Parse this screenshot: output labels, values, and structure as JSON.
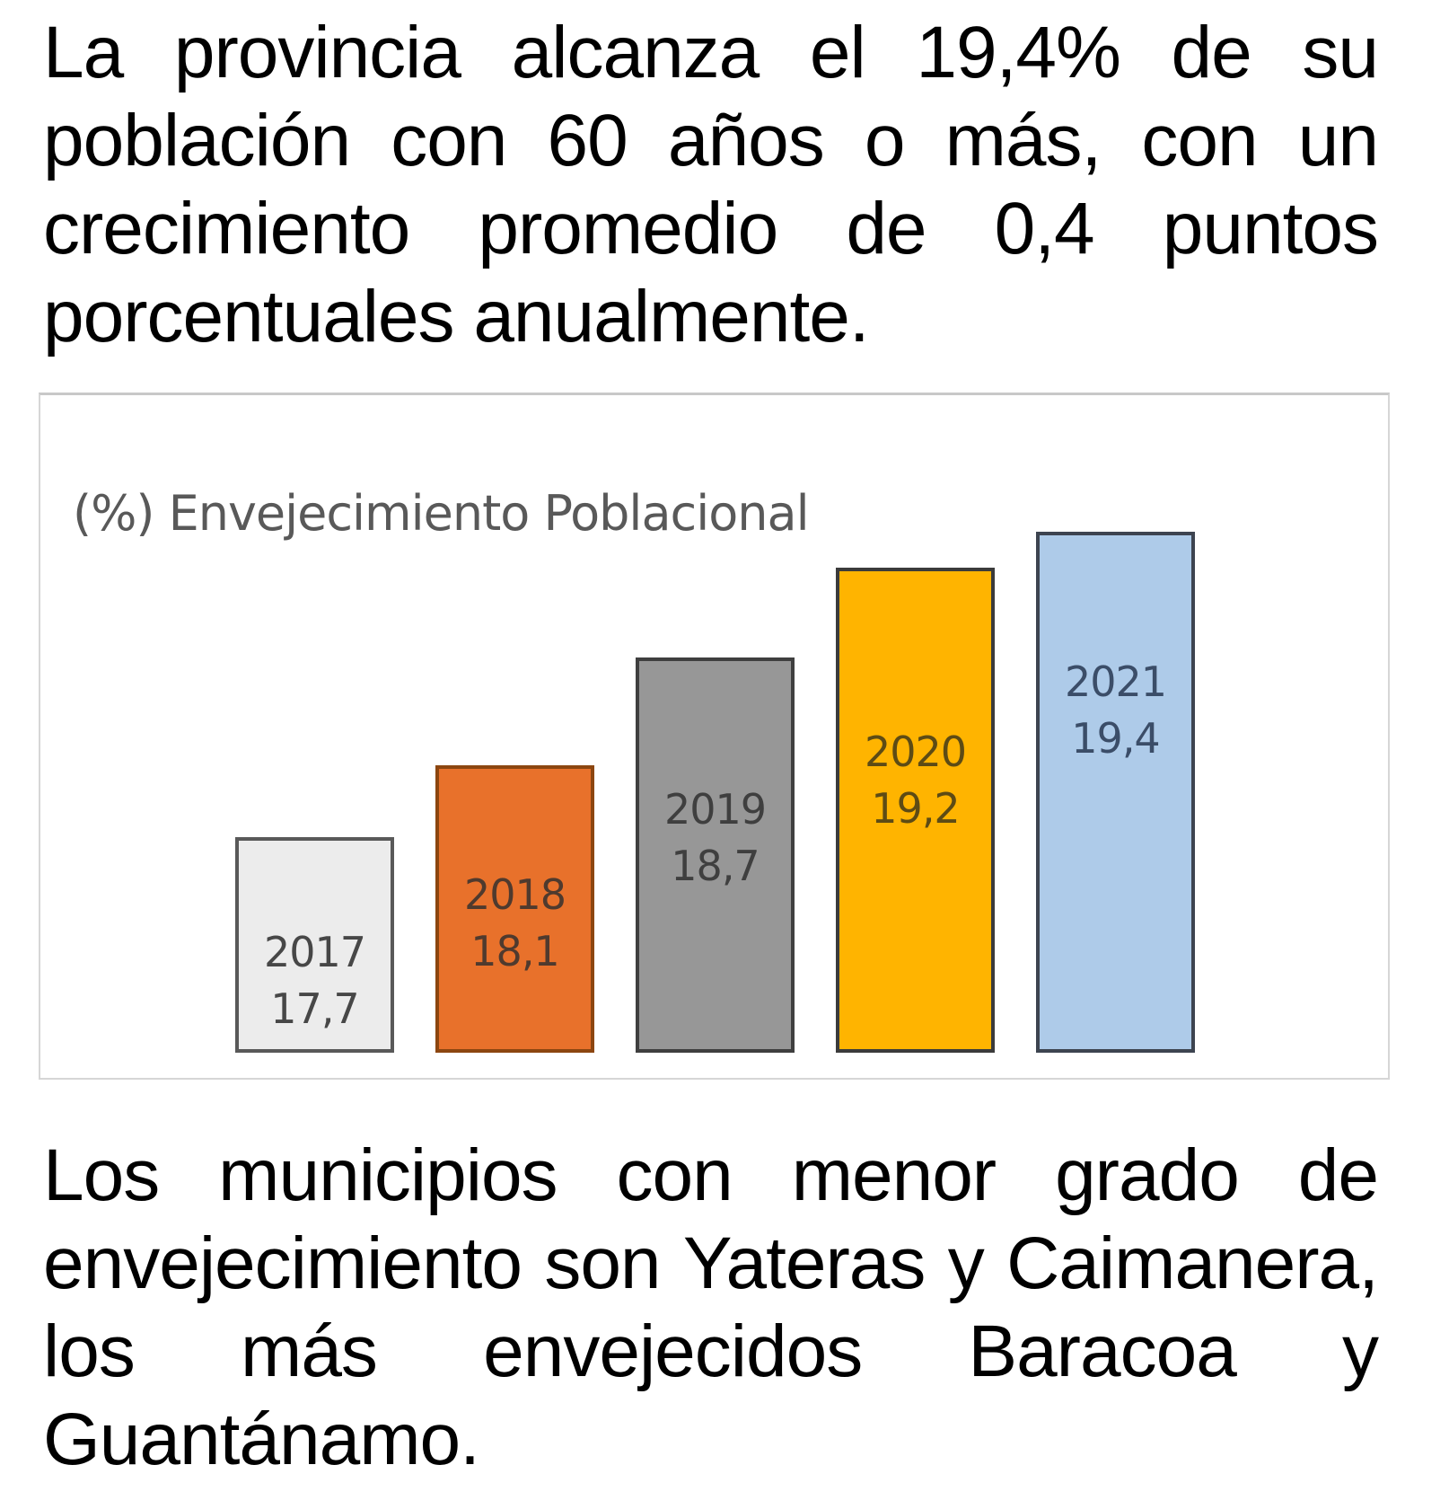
{
  "intro_paragraph": {
    "lines": [
      "La provincia alcanza el 19,4% de su",
      "población con 60 años o más, con un",
      "crecimiento promedio de 0,4 puntos",
      "porcentuales anualmente."
    ]
  },
  "chart": {
    "title": "(%) Envejecimiento Poblacional",
    "title_color": "#595959",
    "background": "#ffffff",
    "border_color": "#d6d6d6"
  },
  "chart_data": {
    "type": "bar",
    "title": "(%) Envejecimiento Poblacional",
    "categories": [
      "2017",
      "2018",
      "2019",
      "2020",
      "2021"
    ],
    "values": [
      17.7,
      18.1,
      18.7,
      19.2,
      19.4
    ],
    "value_labels": [
      "17,7",
      "18,1",
      "18,7",
      "19,2",
      "19,4"
    ],
    "xlabel": "",
    "ylabel": "",
    "ylim": [
      16.5,
      20
    ],
    "grid": false,
    "legend": "none",
    "axes_visible": false,
    "label_position": "inside",
    "bar_styles": [
      {
        "fill": "#ECECEC",
        "border": "#595959",
        "label_color": "#474747"
      },
      {
        "fill": "#E8712B",
        "border": "#8C4610",
        "label_color": "#4F3A2E"
      },
      {
        "fill": "#979797",
        "border": "#3F3F3F",
        "label_color": "#3F3F3F"
      },
      {
        "fill": "#FFB400",
        "border": "#3B3B3B",
        "label_color": "#5D4B15"
      },
      {
        "fill": "#AECBE9",
        "border": "#3D4450",
        "label_color": "#3B4D68"
      }
    ]
  },
  "closing_paragraph": {
    "lines": [
      "Los municipios con menor grado de",
      "envejecimiento son Yateras y Caimanera,",
      "los más envejecidos Baracoa y",
      "Guantánamo."
    ]
  }
}
